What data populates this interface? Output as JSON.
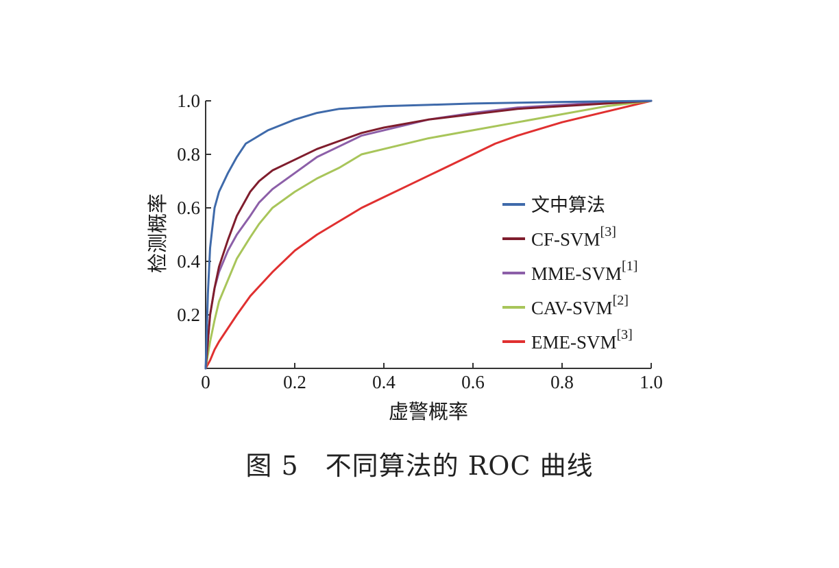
{
  "caption": "图 5　不同算法的 ROC 曲线",
  "chart_data": {
    "type": "line",
    "title": "",
    "xlabel": "虚警概率",
    "ylabel": "检测概率",
    "xlim": [
      0,
      1.0
    ],
    "ylim": [
      0,
      1.0
    ],
    "x_ticks": [
      "0",
      "0.2",
      "0.4",
      "0.6",
      "0.8",
      "1.0"
    ],
    "y_ticks": [
      "0.2",
      "0.4",
      "0.6",
      "0.8",
      "1.0"
    ],
    "grid": false,
    "legend_position": "center-right",
    "series": [
      {
        "name": "文中算法",
        "ref": "",
        "color": "#3f6aaa",
        "x": [
          0,
          0.005,
          0.01,
          0.02,
          0.03,
          0.05,
          0.07,
          0.09,
          0.11,
          0.14,
          0.17,
          0.2,
          0.25,
          0.3,
          0.4,
          0.5,
          0.6,
          0.7,
          0.8,
          0.9,
          1.0
        ],
        "y": [
          0,
          0.28,
          0.45,
          0.6,
          0.66,
          0.73,
          0.79,
          0.84,
          0.86,
          0.89,
          0.91,
          0.93,
          0.955,
          0.97,
          0.98,
          0.985,
          0.99,
          0.993,
          0.996,
          0.998,
          1.0
        ]
      },
      {
        "name": "CF-SVM",
        "ref": "[3]",
        "color": "#7f1d2d",
        "x": [
          0,
          0.01,
          0.02,
          0.03,
          0.05,
          0.07,
          0.1,
          0.12,
          0.15,
          0.2,
          0.25,
          0.3,
          0.35,
          0.4,
          0.5,
          0.6,
          0.7,
          0.8,
          0.9,
          1.0
        ],
        "y": [
          0,
          0.2,
          0.3,
          0.38,
          0.48,
          0.57,
          0.66,
          0.7,
          0.74,
          0.78,
          0.82,
          0.85,
          0.88,
          0.9,
          0.93,
          0.95,
          0.97,
          0.98,
          0.99,
          1.0
        ]
      },
      {
        "name": "MME-SVM",
        "ref": "[1]",
        "color": "#8c5fa8",
        "x": [
          0,
          0.01,
          0.02,
          0.03,
          0.05,
          0.07,
          0.1,
          0.12,
          0.15,
          0.2,
          0.25,
          0.3,
          0.35,
          0.4,
          0.5,
          0.6,
          0.7,
          0.8,
          0.9,
          1.0
        ],
        "y": [
          0,
          0.2,
          0.3,
          0.36,
          0.44,
          0.5,
          0.57,
          0.62,
          0.67,
          0.73,
          0.79,
          0.83,
          0.87,
          0.89,
          0.93,
          0.955,
          0.975,
          0.985,
          0.995,
          1.0
        ]
      },
      {
        "name": "CAV-SVM",
        "ref": "[2]",
        "color": "#a8c55a",
        "x": [
          0,
          0.01,
          0.02,
          0.03,
          0.05,
          0.07,
          0.1,
          0.12,
          0.15,
          0.2,
          0.25,
          0.3,
          0.35,
          0.4,
          0.5,
          0.6,
          0.7,
          0.8,
          0.9,
          1.0
        ],
        "y": [
          0,
          0.1,
          0.18,
          0.25,
          0.33,
          0.41,
          0.49,
          0.54,
          0.6,
          0.66,
          0.71,
          0.75,
          0.8,
          0.82,
          0.86,
          0.89,
          0.92,
          0.95,
          0.98,
          1.0
        ]
      },
      {
        "name": "EME-SVM",
        "ref": "[3]",
        "color": "#e03030",
        "x": [
          0,
          0.01,
          0.02,
          0.03,
          0.05,
          0.07,
          0.1,
          0.15,
          0.2,
          0.25,
          0.3,
          0.35,
          0.4,
          0.45,
          0.5,
          0.55,
          0.6,
          0.65,
          0.7,
          0.8,
          0.9,
          1.0
        ],
        "y": [
          0,
          0.03,
          0.07,
          0.1,
          0.15,
          0.2,
          0.27,
          0.36,
          0.44,
          0.5,
          0.55,
          0.6,
          0.64,
          0.68,
          0.72,
          0.76,
          0.8,
          0.84,
          0.87,
          0.92,
          0.96,
          1.0
        ]
      }
    ]
  }
}
